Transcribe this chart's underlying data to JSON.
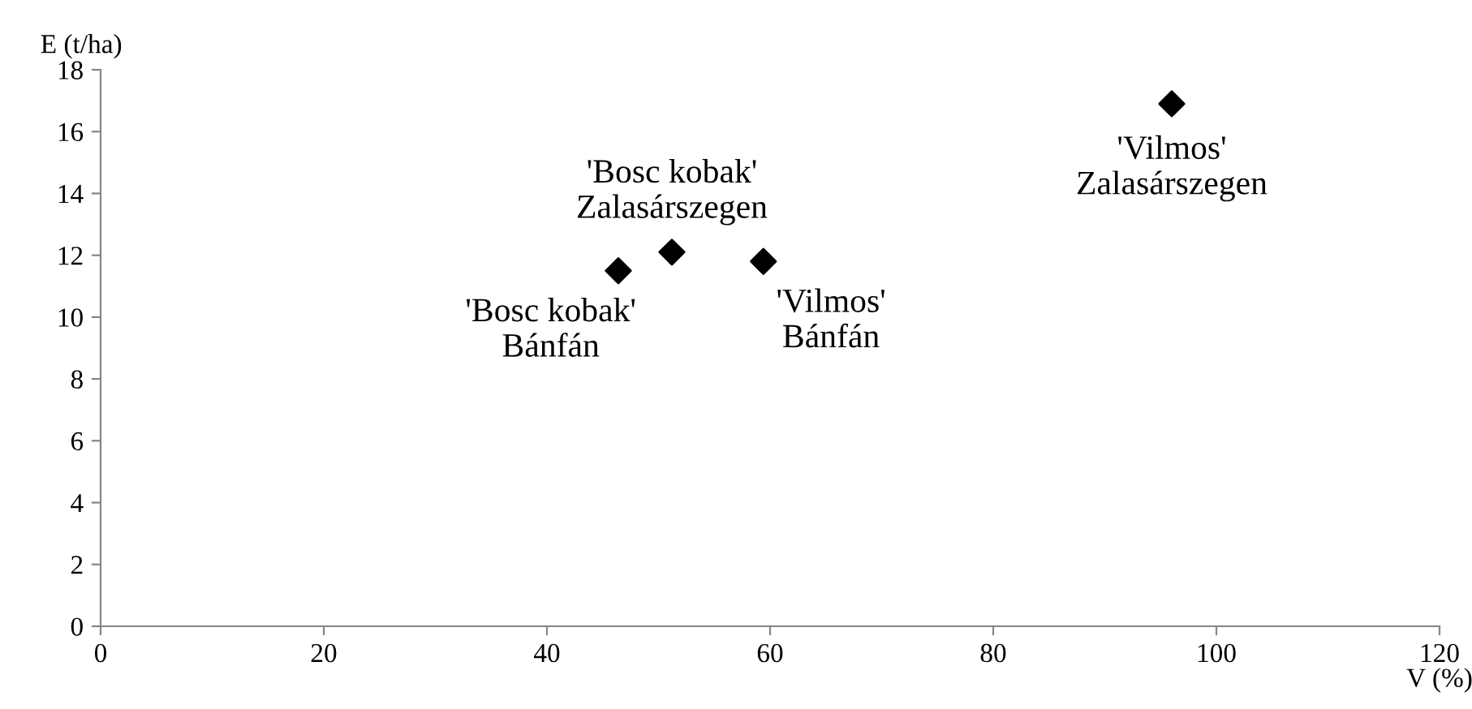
{
  "chart_data": {
    "type": "scatter",
    "xlabel": "V (%)",
    "ylabel": "E (t/ha)",
    "x": [
      46.4,
      51.2,
      59.4,
      96.0
    ],
    "series": [
      {
        "color": "#000000",
        "values": [
          11.5,
          12.1,
          11.8,
          16.9
        ]
      }
    ],
    "marker": "diamond",
    "xlim": [
      0,
      120
    ],
    "xticks": [
      0,
      20,
      40,
      60,
      80,
      100,
      120
    ],
    "ylim": [
      0,
      18
    ],
    "yticks": [
      0,
      2,
      4,
      6,
      8,
      10,
      12,
      14,
      16,
      18
    ],
    "grid": false,
    "legend": false,
    "annotations": [
      {
        "text": "'Bosc kobak'\nBánfán",
        "x": 46.4,
        "y": 11.5
      },
      {
        "text": "'Bosc kobak'\nZalasárszegen",
        "x": 51.2,
        "y": 12.1
      },
      {
        "text": "'Vilmos'\nBánfán",
        "x": 59.4,
        "y": 11.8
      },
      {
        "text": "'Vilmos'\nZalasárszegen",
        "x": 96.0,
        "y": 16.9
      }
    ]
  }
}
